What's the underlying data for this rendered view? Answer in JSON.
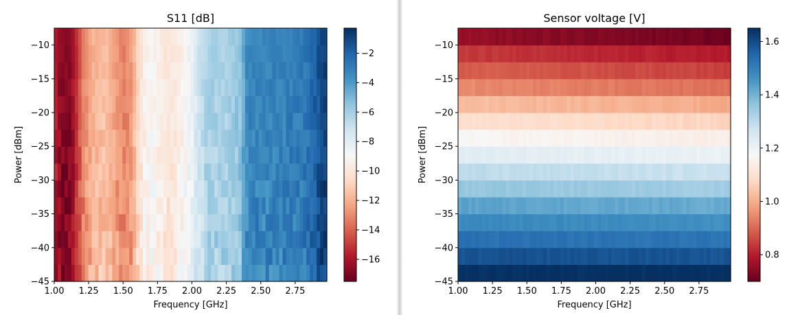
{
  "chart_data": [
    {
      "type": "heatmap",
      "title": "S11 [dB]",
      "xlabel": "Frequency [GHz]",
      "ylabel": "Power [dBm]",
      "xlim": [
        1.0,
        2.98
      ],
      "ylim": [
        -45,
        -7.5
      ],
      "x_ticks": [
        "1.00",
        "1.25",
        "1.50",
        "1.75",
        "2.00",
        "2.25",
        "2.50",
        "2.75"
      ],
      "x_tick_values": [
        1.0,
        1.25,
        1.5,
        1.75,
        2.0,
        2.25,
        2.5,
        2.75
      ],
      "y_ticks": [
        "−10",
        "−15",
        "−20",
        "−25",
        "−30",
        "−35",
        "−40",
        "−45"
      ],
      "y_tick_values": [
        -10,
        -15,
        -20,
        -25,
        -30,
        -35,
        -40,
        -45
      ],
      "colormap": "RdBu",
      "colorbar": {
        "min": -17.5,
        "max": -0.3,
        "ticks": [
          "−2",
          "−4",
          "−6",
          "−8",
          "−10",
          "−12",
          "−14",
          "−16"
        ],
        "tick_values": [
          -2,
          -4,
          -6,
          -8,
          -10,
          -12,
          -14,
          -16
        ]
      },
      "frequency_profile": {
        "x": [
          1.0,
          1.05,
          1.1,
          1.15,
          1.2,
          1.25,
          1.3,
          1.35,
          1.4,
          1.45,
          1.5,
          1.55,
          1.6,
          1.65,
          1.7,
          1.75,
          1.8,
          1.85,
          1.9,
          1.95,
          2.0,
          2.05,
          2.1,
          2.15,
          2.2,
          2.25,
          2.3,
          2.35,
          2.4,
          2.45,
          2.5,
          2.55,
          2.6,
          2.65,
          2.7,
          2.75,
          2.8,
          2.85,
          2.9,
          2.95
        ],
        "s11_db": [
          -15.5,
          -16.8,
          -17.0,
          -15.8,
          -13.5,
          -12.3,
          -11.8,
          -11.5,
          -11.8,
          -12.5,
          -13.2,
          -12.8,
          -11.0,
          -9.5,
          -9.0,
          -9.3,
          -9.8,
          -10.0,
          -9.6,
          -9.0,
          -8.2,
          -7.2,
          -6.3,
          -6.0,
          -6.2,
          -6.1,
          -5.8,
          -5.5,
          -3.4,
          -3.1,
          -3.3,
          -3.2,
          -3.1,
          -3.2,
          -3.0,
          -2.9,
          -2.8,
          -2.5,
          -1.8,
          -0.8
        ]
      }
    },
    {
      "type": "heatmap",
      "title": "Sensor voltage [V]",
      "xlabel": "Frequency [GHz]",
      "ylabel": "Power [dBm]",
      "xlim": [
        1.0,
        2.98
      ],
      "ylim": [
        -45,
        -7.5
      ],
      "x_ticks": [
        "1.00",
        "1.25",
        "1.50",
        "1.75",
        "2.00",
        "2.25",
        "2.50",
        "2.75"
      ],
      "x_tick_values": [
        1.0,
        1.25,
        1.5,
        1.75,
        2.0,
        2.25,
        2.5,
        2.75
      ],
      "y_ticks": [
        "−10",
        "−15",
        "−20",
        "−25",
        "−30",
        "−35",
        "−40",
        "−45"
      ],
      "y_tick_values": [
        -10,
        -15,
        -20,
        -25,
        -30,
        -35,
        -40,
        -45
      ],
      "colormap": "RdBu",
      "colorbar": {
        "min": 0.7,
        "max": 1.65,
        "ticks": [
          "1.6",
          "1.4",
          "1.2",
          "1.0",
          "0.8"
        ],
        "tick_values": [
          1.6,
          1.4,
          1.2,
          1.0,
          0.8
        ]
      },
      "power_levels_dbm": [
        -8.75,
        -11.25,
        -13.75,
        -16.25,
        -18.75,
        -21.25,
        -23.75,
        -26.25,
        -28.75,
        -31.25,
        -33.75,
        -36.25,
        -38.75,
        -41.25,
        -43.75
      ],
      "voltage_v": [
        0.76,
        0.84,
        0.89,
        0.95,
        1.03,
        1.1,
        1.17,
        1.23,
        1.3,
        1.36,
        1.43,
        1.48,
        1.53,
        1.59,
        1.65
      ]
    }
  ]
}
